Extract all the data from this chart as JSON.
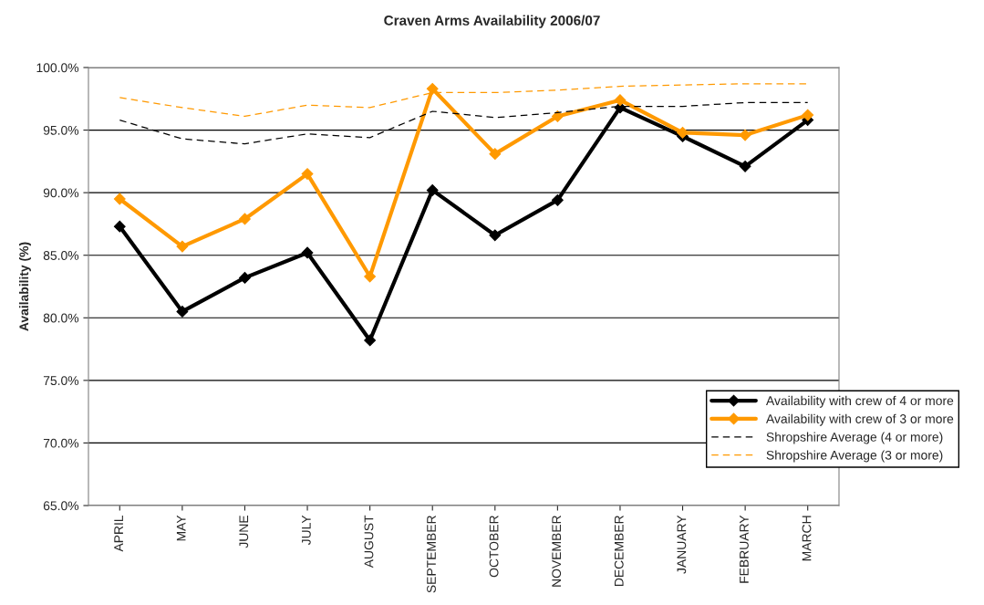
{
  "chart_data": {
    "type": "line",
    "title": "Craven Arms Availability 2006/07",
    "ylabel": "Availability (%)",
    "categories": [
      "APRIL",
      "MAY",
      "JUNE",
      "JULY",
      "AUGUST",
      "SEPTEMBER",
      "OCTOBER",
      "NOVEMBER",
      "DECEMBER",
      "JANUARY",
      "FEBRUARY",
      "MARCH"
    ],
    "series": [
      {
        "name": "Availability with crew of 4 or more",
        "color": "#000000",
        "marker": "diamond",
        "line_style": "solid",
        "values": [
          87.3,
          80.5,
          83.2,
          85.2,
          78.2,
          90.2,
          86.6,
          89.4,
          96.8,
          94.5,
          92.1,
          95.8
        ]
      },
      {
        "name": "Availability with crew of 3 or more",
        "color": "#ff9900",
        "marker": "diamond",
        "line_style": "solid",
        "values": [
          89.5,
          85.7,
          87.9,
          91.5,
          83.3,
          98.3,
          93.1,
          96.1,
          97.4,
          94.8,
          94.6,
          96.2
        ]
      },
      {
        "name": "Shropshire Average (4 or more)",
        "color": "#000000",
        "marker": "none",
        "line_style": "dashed",
        "values": [
          95.8,
          94.3,
          93.9,
          94.7,
          94.4,
          96.5,
          96.0,
          96.4,
          96.9,
          96.9,
          97.2,
          97.2
        ]
      },
      {
        "name": "Shropshire Average (3 or more)",
        "color": "#ff9900",
        "marker": "none",
        "line_style": "dashed",
        "values": [
          97.6,
          96.8,
          96.1,
          97.0,
          96.8,
          98.0,
          98.0,
          98.2,
          98.5,
          98.6,
          98.7,
          98.7
        ]
      }
    ],
    "ylim": [
      65,
      100
    ],
    "yticks": [
      {
        "value": 65,
        "label": "65.0%"
      },
      {
        "value": 70,
        "label": "70.0%"
      },
      {
        "value": 75,
        "label": "75.0%"
      },
      {
        "value": 80,
        "label": "80.0%"
      },
      {
        "value": 85,
        "label": "85.0%"
      },
      {
        "value": 90,
        "label": "90.0%"
      },
      {
        "value": 95,
        "label": "95.0%"
      },
      {
        "value": 100,
        "label": "100.0%"
      }
    ],
    "grid": "y",
    "legend": "bottom right"
  }
}
